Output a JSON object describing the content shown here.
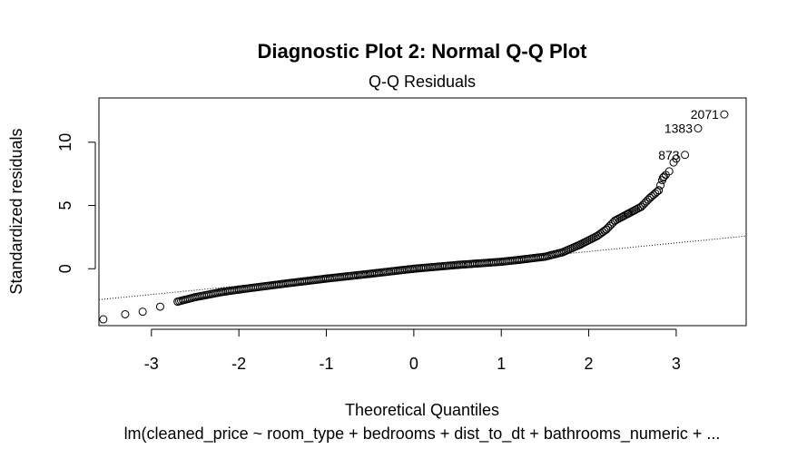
{
  "chart_data": {
    "type": "scatter",
    "title": "Diagnostic Plot 2: Normal Q-Q Plot",
    "subtitle": "Q-Q Residuals",
    "xlabel": "Theoretical Quantiles",
    "ylabel": "Standardized residuals",
    "footer": "lm(cleaned_price ~ room_type + bedrooms + dist_to_dt + bathrooms_numeric +  ...",
    "xlim": [
      -3.6,
      3.8
    ],
    "ylim": [
      -4.5,
      13.5
    ],
    "x_ticks": [
      -3,
      -2,
      -1,
      0,
      1,
      2,
      3
    ],
    "x_tick_labels": [
      "-3",
      "-2",
      "-1",
      "0",
      "1",
      "2",
      "3"
    ],
    "y_ticks": [
      0,
      5,
      10
    ],
    "y_tick_labels": [
      "0",
      "5",
      "10"
    ],
    "reference_line": {
      "slope": 0.68,
      "intercept": 0.0
    },
    "grid": false,
    "quantile_curve": [
      [
        -3.55,
        -4.0
      ],
      [
        -3.3,
        -3.6
      ],
      [
        -3.1,
        -3.4
      ],
      [
        -2.9,
        -3.0
      ],
      [
        -2.7,
        -2.6
      ],
      [
        -2.5,
        -2.25
      ],
      [
        -2.2,
        -1.85
      ],
      [
        -2.0,
        -1.65
      ],
      [
        -1.5,
        -1.2
      ],
      [
        -1.0,
        -0.78
      ],
      [
        -0.5,
        -0.4
      ],
      [
        0.0,
        0.0
      ],
      [
        0.5,
        0.3
      ],
      [
        1.0,
        0.55
      ],
      [
        1.2,
        0.7
      ],
      [
        1.5,
        0.95
      ],
      [
        1.7,
        1.3
      ],
      [
        1.9,
        1.9
      ],
      [
        2.1,
        2.6
      ],
      [
        2.2,
        3.1
      ],
      [
        2.3,
        3.8
      ],
      [
        2.45,
        4.35
      ],
      [
        2.6,
        4.9
      ],
      [
        2.7,
        5.6
      ],
      [
        2.8,
        6.2
      ],
      [
        2.85,
        7.2
      ],
      [
        2.92,
        7.7
      ],
      [
        2.97,
        8.4
      ],
      [
        3.0,
        8.7
      ]
    ],
    "labeled_points": [
      {
        "label": "873",
        "x": 3.1,
        "y": 9.0
      },
      {
        "label": "1383",
        "x": 3.25,
        "y": 11.1
      },
      {
        "label": "2071",
        "x": 3.55,
        "y": 12.2
      }
    ],
    "series_color": "#000000",
    "reference_line_style": "dotted"
  }
}
